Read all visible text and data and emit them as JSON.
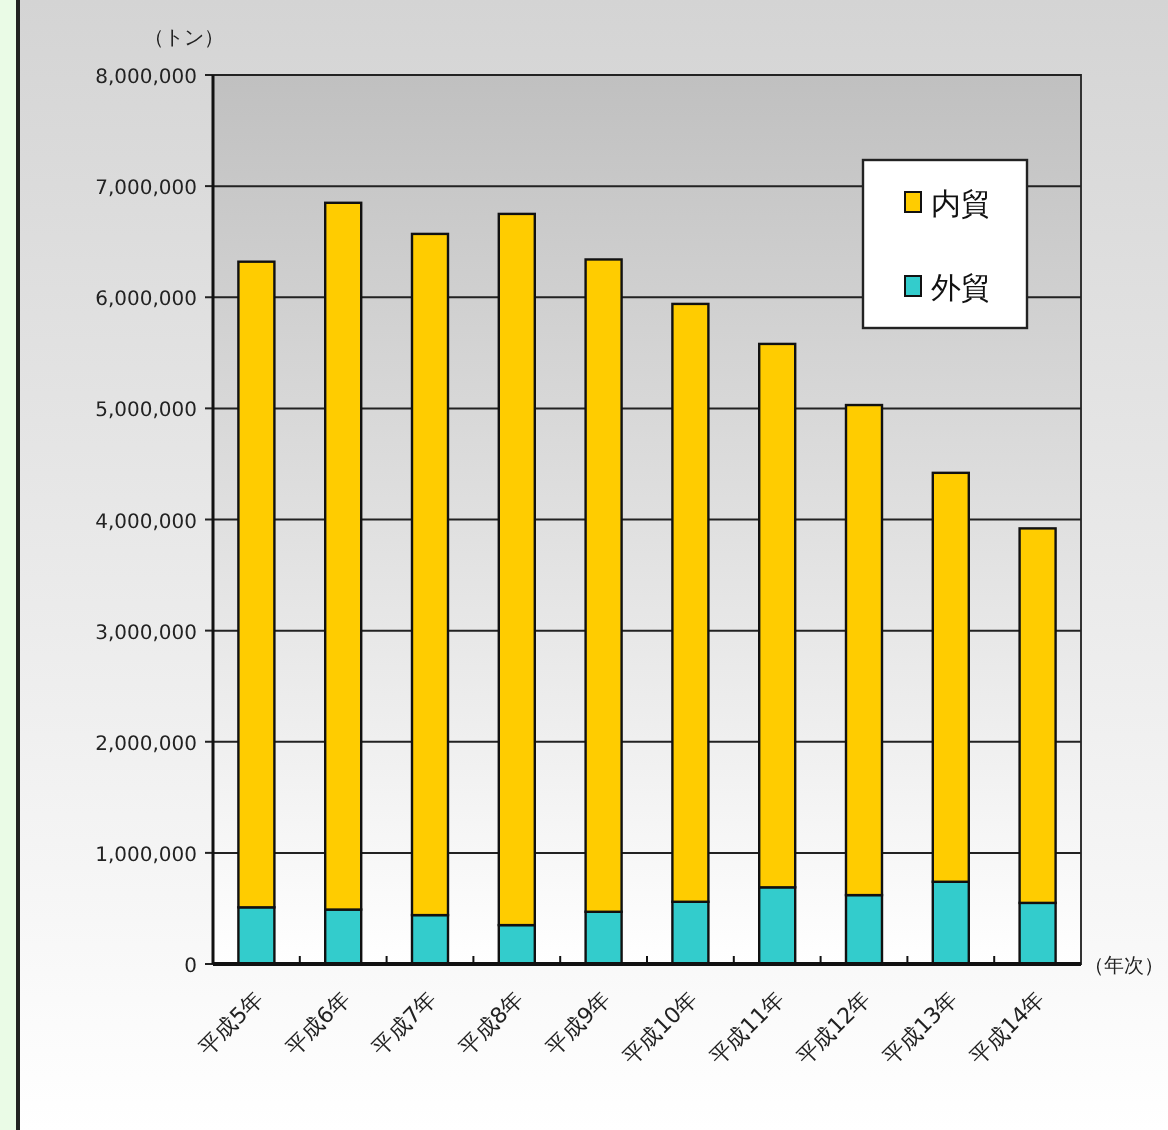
{
  "chart_data": {
    "type": "bar",
    "stacked": true,
    "ylabel": "（トン）",
    "xlabel": "（年次）",
    "categories": [
      "平成5年",
      "平成6年",
      "平成7年",
      "平成8年",
      "平成9年",
      "平成10年",
      "平成11年",
      "平成12年",
      "平成13年",
      "平成14年"
    ],
    "series": [
      {
        "name": "外貿",
        "color": "#33cccc",
        "values": [
          510000,
          490000,
          440000,
          350000,
          470000,
          560000,
          690000,
          620000,
          740000,
          550000
        ]
      },
      {
        "name": "内貿",
        "color": "#ffcc00",
        "values": [
          5810000,
          6360000,
          6130000,
          6400000,
          5870000,
          5380000,
          4890000,
          4410000,
          3680000,
          3370000
        ]
      }
    ],
    "ylim": [
      0,
      8000000
    ],
    "yticks": [
      0,
      {
        "value": 1000000,
        "label": "1,000,000"
      },
      {
        "value": 2000000,
        "label": "2,000,000"
      },
      {
        "value": 3000000,
        "label": "3,000,000"
      },
      {
        "value": 4000000,
        "label": "4,000,000"
      },
      {
        "value": 5000000,
        "label": "5,000,000"
      },
      {
        "value": 6000000,
        "label": "6,000,000"
      },
      {
        "value": 7000000,
        "label": "7,000,000"
      },
      {
        "value": 8000000,
        "label": "8,000,000"
      }
    ],
    "grid": "y",
    "legend": "top right"
  }
}
